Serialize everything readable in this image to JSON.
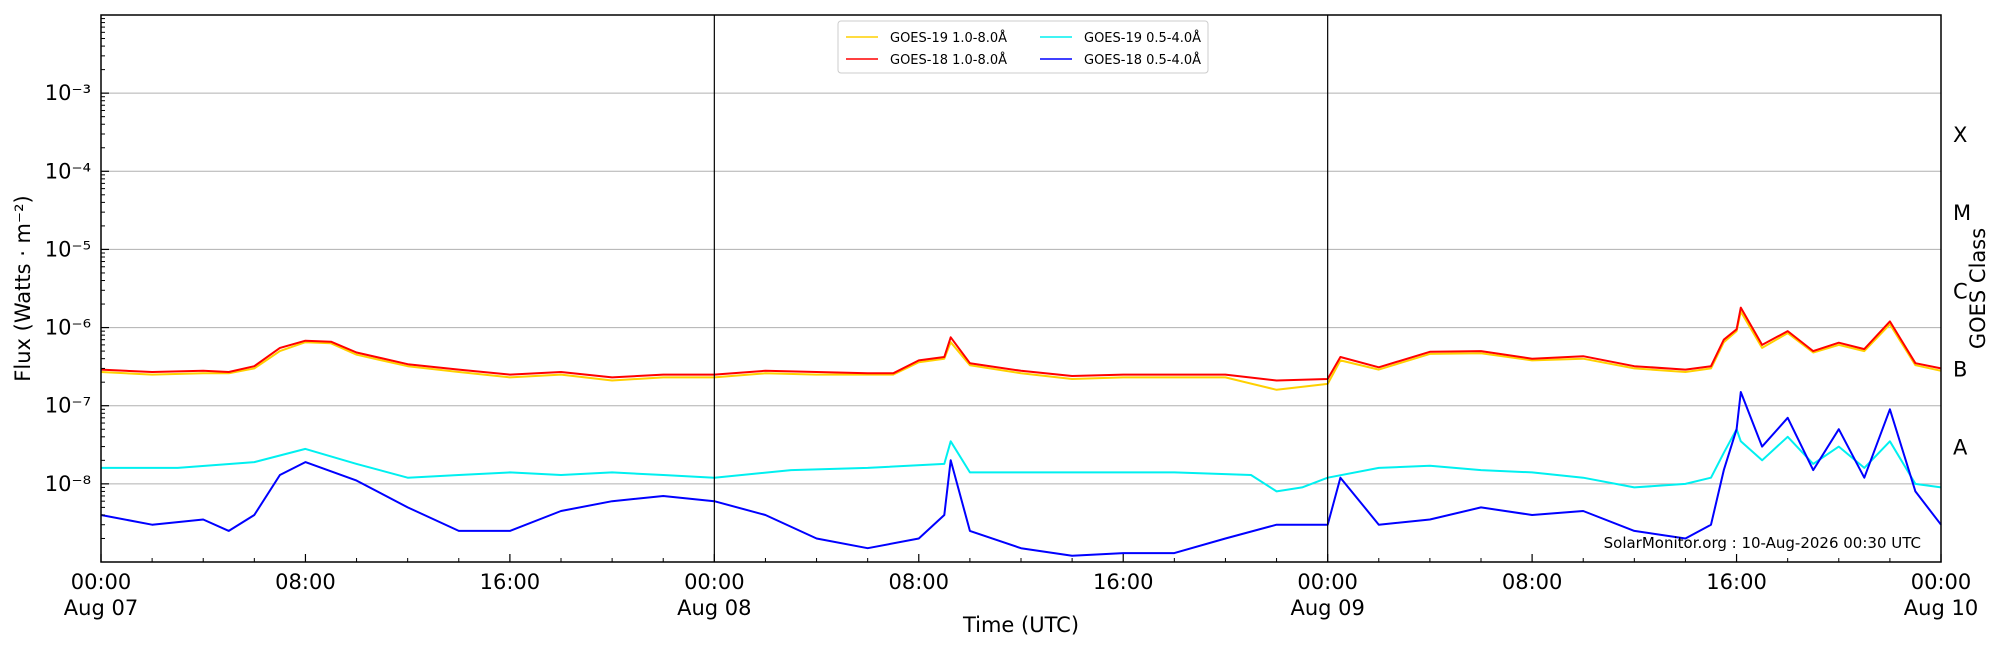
{
  "chart_data": {
    "type": "line",
    "title": "",
    "xlabel": "Time (UTC)",
    "ylabel": "Flux (Watts · m⁻²)",
    "ylabel_right": "GOES Class",
    "y_scale": "log",
    "ylim": [
      1e-09,
      0.01
    ],
    "xlim": [
      "2026-08-07T00:00",
      "2026-08-10T00:00"
    ],
    "grid": "horizontal",
    "legend_position": "top-center",
    "y_ticks": [
      {
        "value": 1e-08,
        "label": "10⁻⁸"
      },
      {
        "value": 1e-07,
        "label": "10⁻⁷"
      },
      {
        "value": 1e-06,
        "label": "10⁻⁶"
      },
      {
        "value": 1e-05,
        "label": "10⁻⁵"
      },
      {
        "value": 0.0001,
        "label": "10⁻⁴"
      },
      {
        "value": 0.001,
        "label": "10⁻³"
      }
    ],
    "x_ticks": [
      {
        "t": "2026-08-07T00:00",
        "line1": "00:00",
        "line2": "Aug 07"
      },
      {
        "t": "2026-08-07T08:00",
        "line1": "08:00",
        "line2": ""
      },
      {
        "t": "2026-08-07T16:00",
        "line1": "16:00",
        "line2": ""
      },
      {
        "t": "2026-08-08T00:00",
        "line1": "00:00",
        "line2": "Aug 08"
      },
      {
        "t": "2026-08-08T08:00",
        "line1": "08:00",
        "line2": ""
      },
      {
        "t": "2026-08-08T16:00",
        "line1": "16:00",
        "line2": ""
      },
      {
        "t": "2026-08-09T00:00",
        "line1": "00:00",
        "line2": "Aug 09"
      },
      {
        "t": "2026-08-09T08:00",
        "line1": "08:00",
        "line2": ""
      },
      {
        "t": "2026-08-09T16:00",
        "line1": "16:00",
        "line2": ""
      },
      {
        "t": "2026-08-10T00:00",
        "line1": "00:00",
        "line2": "Aug 10"
      }
    ],
    "day_boundaries": [
      "2026-08-08T00:00",
      "2026-08-09T00:00"
    ],
    "goes_classes": [
      {
        "label": "A",
        "flux": 3e-08
      },
      {
        "label": "B",
        "flux": 3e-07
      },
      {
        "label": "C",
        "flux": 3e-06
      },
      {
        "label": "M",
        "flux": 3e-05
      },
      {
        "label": "X",
        "flux": 0.0003
      }
    ],
    "watermark": "SolarMonitor.org : 10-Aug-2026 00:30 UTC",
    "series": [
      {
        "name": "GOES-19 1.0-8.0Å",
        "color": "#ffd000",
        "x": [
          "2026-08-07T00:00",
          "2026-08-07T02:00",
          "2026-08-07T04:00",
          "2026-08-07T05:00",
          "2026-08-07T06:00",
          "2026-08-07T07:00",
          "2026-08-07T08:00",
          "2026-08-07T09:00",
          "2026-08-07T10:00",
          "2026-08-07T12:00",
          "2026-08-07T14:00",
          "2026-08-07T16:00",
          "2026-08-07T18:00",
          "2026-08-07T20:00",
          "2026-08-07T22:00",
          "2026-08-08T00:00",
          "2026-08-08T02:00",
          "2026-08-08T04:00",
          "2026-08-08T06:00",
          "2026-08-08T07:00",
          "2026-08-08T08:00",
          "2026-08-08T09:00",
          "2026-08-08T09:15",
          "2026-08-08T10:00",
          "2026-08-08T12:00",
          "2026-08-08T14:00",
          "2026-08-08T16:00",
          "2026-08-08T18:00",
          "2026-08-08T20:00",
          "2026-08-08T22:00",
          "2026-08-09T00:00",
          "2026-08-09T00:30",
          "2026-08-09T02:00",
          "2026-08-09T04:00",
          "2026-08-09T06:00",
          "2026-08-09T08:00",
          "2026-08-09T10:00",
          "2026-08-09T12:00",
          "2026-08-09T14:00",
          "2026-08-09T15:00",
          "2026-08-09T15:30",
          "2026-08-09T16:00",
          "2026-08-09T16:10",
          "2026-08-09T17:00",
          "2026-08-09T18:00",
          "2026-08-09T19:00",
          "2026-08-09T20:00",
          "2026-08-09T21:00",
          "2026-08-09T22:00",
          "2026-08-09T23:00",
          "2026-08-10T00:00"
        ],
        "values": [
          2.7e-07,
          2.5e-07,
          2.6e-07,
          2.6e-07,
          3e-07,
          5e-07,
          6.5e-07,
          6.3e-07,
          4.5e-07,
          3.2e-07,
          2.7e-07,
          2.3e-07,
          2.5e-07,
          2.1e-07,
          2.3e-07,
          2.3e-07,
          2.6e-07,
          2.5e-07,
          2.5e-07,
          2.5e-07,
          3.6e-07,
          4e-07,
          6.5e-07,
          3.3e-07,
          2.6e-07,
          2.2e-07,
          2.3e-07,
          2.3e-07,
          2.3e-07,
          1.6e-07,
          1.9e-07,
          3.8e-07,
          2.9e-07,
          4.6e-07,
          4.7e-07,
          3.8e-07,
          4e-07,
          3e-07,
          2.7e-07,
          3e-07,
          6.5e-07,
          9e-07,
          1.6e-06,
          5.5e-07,
          8.5e-07,
          4.8e-07,
          6e-07,
          5e-07,
          1.1e-06,
          3.3e-07,
          2.8e-07
        ]
      },
      {
        "name": "GOES-18 1.0-8.0Å",
        "color": "#ff0000",
        "x": [
          "2026-08-07T00:00",
          "2026-08-07T02:00",
          "2026-08-07T04:00",
          "2026-08-07T05:00",
          "2026-08-07T06:00",
          "2026-08-07T07:00",
          "2026-08-07T08:00",
          "2026-08-07T09:00",
          "2026-08-07T10:00",
          "2026-08-07T12:00",
          "2026-08-07T14:00",
          "2026-08-07T16:00",
          "2026-08-07T18:00",
          "2026-08-07T20:00",
          "2026-08-07T22:00",
          "2026-08-08T00:00",
          "2026-08-08T02:00",
          "2026-08-08T04:00",
          "2026-08-08T06:00",
          "2026-08-08T07:00",
          "2026-08-08T08:00",
          "2026-08-08T09:00",
          "2026-08-08T09:15",
          "2026-08-08T10:00",
          "2026-08-08T12:00",
          "2026-08-08T14:00",
          "2026-08-08T16:00",
          "2026-08-08T18:00",
          "2026-08-08T20:00",
          "2026-08-08T22:00",
          "2026-08-09T00:00",
          "2026-08-09T00:30",
          "2026-08-09T02:00",
          "2026-08-09T04:00",
          "2026-08-09T06:00",
          "2026-08-09T08:00",
          "2026-08-09T10:00",
          "2026-08-09T12:00",
          "2026-08-09T14:00",
          "2026-08-09T15:00",
          "2026-08-09T15:30",
          "2026-08-09T16:00",
          "2026-08-09T16:10",
          "2026-08-09T17:00",
          "2026-08-09T18:00",
          "2026-08-09T19:00",
          "2026-08-09T20:00",
          "2026-08-09T21:00",
          "2026-08-09T22:00",
          "2026-08-09T23:00",
          "2026-08-10T00:00"
        ],
        "values": [
          2.9e-07,
          2.7e-07,
          2.8e-07,
          2.7e-07,
          3.2e-07,
          5.5e-07,
          6.8e-07,
          6.6e-07,
          4.8e-07,
          3.4e-07,
          2.9e-07,
          2.5e-07,
          2.7e-07,
          2.3e-07,
          2.5e-07,
          2.5e-07,
          2.8e-07,
          2.7e-07,
          2.6e-07,
          2.6e-07,
          3.8e-07,
          4.2e-07,
          7.5e-07,
          3.5e-07,
          2.8e-07,
          2.4e-07,
          2.5e-07,
          2.5e-07,
          2.5e-07,
          2.1e-07,
          2.2e-07,
          4.2e-07,
          3.1e-07,
          4.9e-07,
          5e-07,
          4e-07,
          4.3e-07,
          3.2e-07,
          2.9e-07,
          3.2e-07,
          7e-07,
          9.5e-07,
          1.8e-06,
          6e-07,
          9e-07,
          5e-07,
          6.4e-07,
          5.3e-07,
          1.2e-06,
          3.5e-07,
          3e-07
        ]
      },
      {
        "name": "GOES-19 0.5-4.0Å",
        "color": "#00f0f0",
        "x": [
          "2026-08-07T00:00",
          "2026-08-07T03:00",
          "2026-08-07T06:00",
          "2026-08-07T08:00",
          "2026-08-07T10:00",
          "2026-08-07T12:00",
          "2026-08-07T14:00",
          "2026-08-07T16:00",
          "2026-08-07T18:00",
          "2026-08-07T20:00",
          "2026-08-07T22:00",
          "2026-08-08T00:00",
          "2026-08-08T03:00",
          "2026-08-08T06:00",
          "2026-08-08T09:00",
          "2026-08-08T09:15",
          "2026-08-08T10:00",
          "2026-08-08T12:00",
          "2026-08-08T15:00",
          "2026-08-08T18:00",
          "2026-08-08T21:00",
          "2026-08-08T22:00",
          "2026-08-08T23:00",
          "2026-08-09T00:00",
          "2026-08-09T02:00",
          "2026-08-09T04:00",
          "2026-08-09T06:00",
          "2026-08-09T08:00",
          "2026-08-09T10:00",
          "2026-08-09T12:00",
          "2026-08-09T14:00",
          "2026-08-09T15:00",
          "2026-08-09T15:30",
          "2026-08-09T16:00",
          "2026-08-09T16:10",
          "2026-08-09T17:00",
          "2026-08-09T18:00",
          "2026-08-09T19:00",
          "2026-08-09T20:00",
          "2026-08-09T21:00",
          "2026-08-09T22:00",
          "2026-08-09T23:00",
          "2026-08-10T00:00"
        ],
        "values": [
          1.6e-08,
          1.6e-08,
          1.9e-08,
          2.8e-08,
          1.8e-08,
          1.2e-08,
          1.3e-08,
          1.4e-08,
          1.3e-08,
          1.4e-08,
          1.3e-08,
          1.2e-08,
          1.5e-08,
          1.6e-08,
          1.8e-08,
          3.5e-08,
          1.4e-08,
          1.4e-08,
          1.4e-08,
          1.4e-08,
          1.3e-08,
          8e-09,
          9e-09,
          1.2e-08,
          1.6e-08,
          1.7e-08,
          1.5e-08,
          1.4e-08,
          1.2e-08,
          9e-09,
          1e-08,
          1.2e-08,
          2.5e-08,
          5e-08,
          3.5e-08,
          2e-08,
          4e-08,
          1.8e-08,
          3e-08,
          1.6e-08,
          3.5e-08,
          1e-08,
          9e-09
        ]
      },
      {
        "name": "GOES-18 0.5-4.0Å",
        "color": "#0000ff",
        "x": [
          "2026-08-07T00:00",
          "2026-08-07T02:00",
          "2026-08-07T04:00",
          "2026-08-07T05:00",
          "2026-08-07T06:00",
          "2026-08-07T07:00",
          "2026-08-07T08:00",
          "2026-08-07T10:00",
          "2026-08-07T12:00",
          "2026-08-07T14:00",
          "2026-08-07T16:00",
          "2026-08-07T18:00",
          "2026-08-07T20:00",
          "2026-08-07T22:00",
          "2026-08-08T00:00",
          "2026-08-08T02:00",
          "2026-08-08T04:00",
          "2026-08-08T06:00",
          "2026-08-08T08:00",
          "2026-08-08T09:00",
          "2026-08-08T09:15",
          "2026-08-08T10:00",
          "2026-08-08T12:00",
          "2026-08-08T14:00",
          "2026-08-08T16:00",
          "2026-08-08T18:00",
          "2026-08-08T20:00",
          "2026-08-08T22:00",
          "2026-08-09T00:00",
          "2026-08-09T00:30",
          "2026-08-09T02:00",
          "2026-08-09T04:00",
          "2026-08-09T06:00",
          "2026-08-09T08:00",
          "2026-08-09T10:00",
          "2026-08-09T12:00",
          "2026-08-09T14:00",
          "2026-08-09T15:00",
          "2026-08-09T15:30",
          "2026-08-09T16:00",
          "2026-08-09T16:10",
          "2026-08-09T17:00",
          "2026-08-09T18:00",
          "2026-08-09T19:00",
          "2026-08-09T20:00",
          "2026-08-09T21:00",
          "2026-08-09T22:00",
          "2026-08-09T23:00",
          "2026-08-10T00:00"
        ],
        "values": [
          4e-09,
          3e-09,
          3.5e-09,
          2.5e-09,
          4e-09,
          1.3e-08,
          1.9e-08,
          1.1e-08,
          5e-09,
          2.5e-09,
          2.5e-09,
          4.5e-09,
          6e-09,
          7e-09,
          6e-09,
          4e-09,
          2e-09,
          1.5e-09,
          2e-09,
          4e-09,
          2e-08,
          2.5e-09,
          1.5e-09,
          1.2e-09,
          1.3e-09,
          1.3e-09,
          2e-09,
          3e-09,
          3e-09,
          1.2e-08,
          3e-09,
          3.5e-09,
          5e-09,
          4e-09,
          4.5e-09,
          2.5e-09,
          2e-09,
          3e-09,
          1.5e-08,
          5e-08,
          1.5e-07,
          3e-08,
          7e-08,
          1.5e-08,
          5e-08,
          1.2e-08,
          9e-08,
          8e-09,
          3e-09
        ]
      }
    ]
  }
}
